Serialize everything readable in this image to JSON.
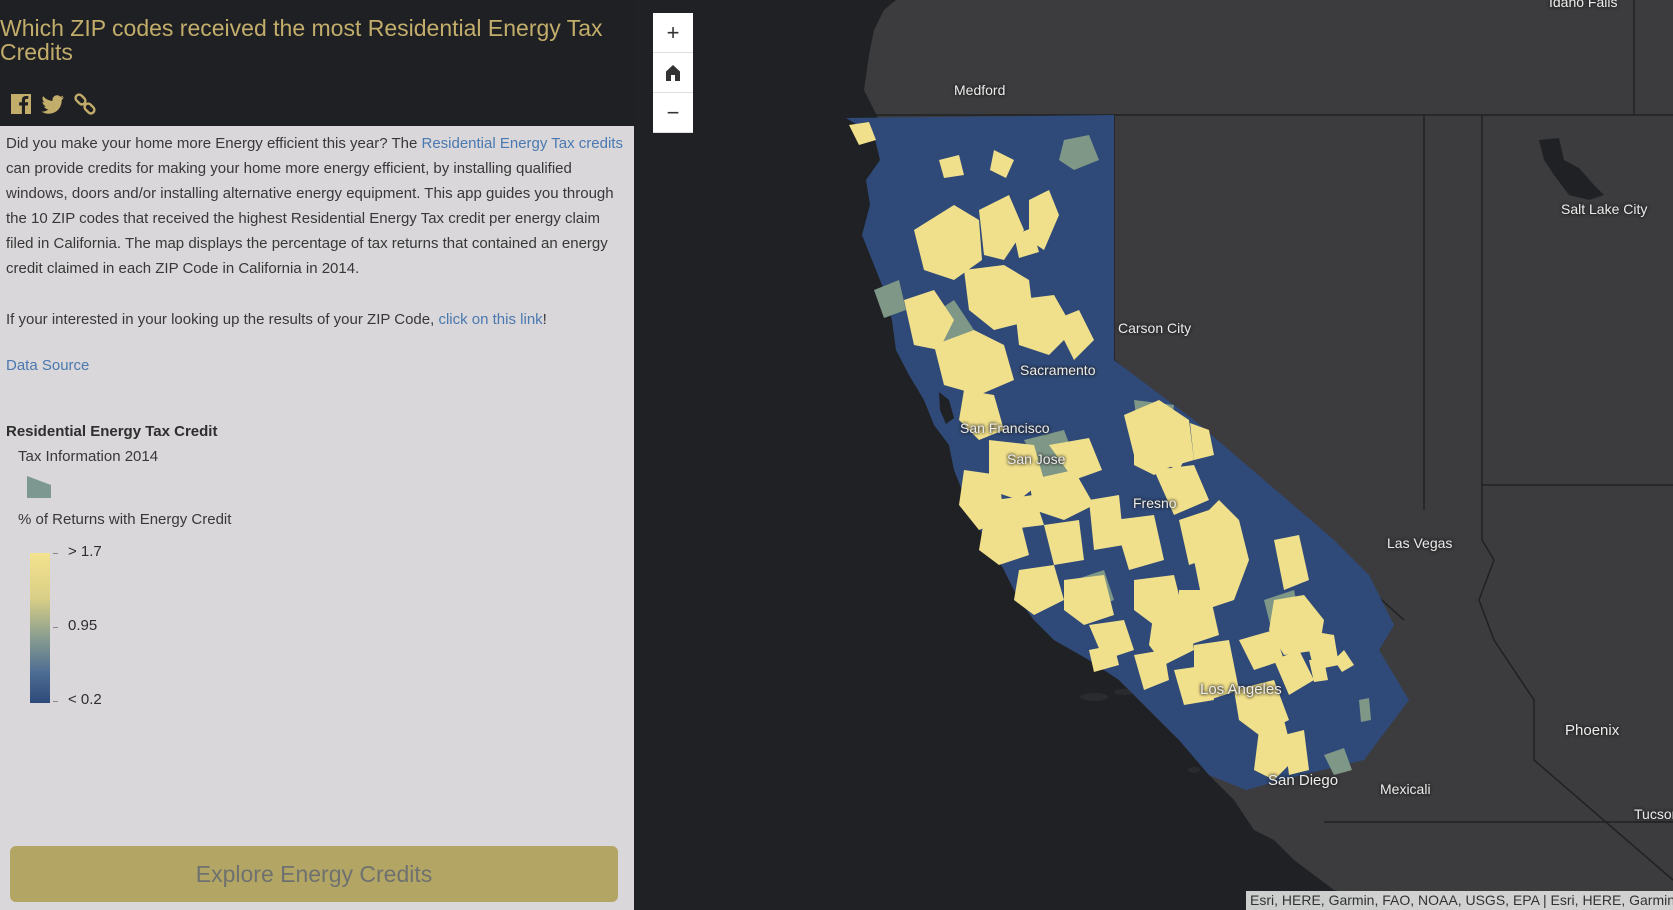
{
  "app": {
    "title": "Which ZIP codes received the most Residential Energy Tax Credits"
  },
  "social": {
    "icons": [
      "facebook-icon",
      "twitter-icon",
      "link-icon"
    ]
  },
  "intro": {
    "part1": "Did you make your home more Energy efficient this year? The ",
    "link1": "Residential Energy Tax credits",
    "part2": " can provide credits for making your home more energy efficient, by installing qualified windows, doors and/or installing alternative energy equipment. This app guides you through the 10 ZIP codes that received the highest Residential Energy Tax credit per energy claim filed in California. The map displays the percentage of tax returns that contained an energy credit claimed in each ZIP Code in California in 2014.",
    "part3": "If your interested in your looking up the results of your ZIP Code, ",
    "link2": "click on this link",
    "part4": "!",
    "source_link": "Data Source"
  },
  "legend": {
    "title": "Residential Energy Tax Credit",
    "layer": "Tax Information 2014",
    "field": "% of Returns with Energy Credit",
    "high": "> 1.7",
    "mid": "0.95",
    "low": "< 0.2",
    "ramp_colors": [
      "#f4e38e",
      "#8da08f",
      "#2e4a7a"
    ]
  },
  "button": {
    "explore": "Explore Energy Credits"
  },
  "map": {
    "zoom_in": "+",
    "zoom_out": "−",
    "home_icon": "home-icon",
    "attribution": "Esri, HERE, Garmin, FAO, NOAA, USGS, EPA | Esri, HERE, Garmin, FAO, NOAA, USGS, EPA",
    "labels": {
      "idaho_falls": "Idaho Falls",
      "medford": "Medford",
      "salt_lake_city": "Salt Lake City",
      "carson_city": "Carson City",
      "sacramento": "Sacramento",
      "san_francisco": "San Francisco",
      "san_jose": "San Jose",
      "fresno": "Fresno",
      "las_vegas": "Las Vegas",
      "los_angeles": "Los Angeles",
      "phoenix": "Phoenix",
      "san_diego": "San Diego",
      "mexicali": "Mexicali",
      "tucson": "Tucson"
    },
    "colors": {
      "land": "#3b3b3e",
      "water": "#1f2124",
      "low": "#2f4a79",
      "mid": "#8da08f",
      "high": "#f4e38e"
    }
  }
}
